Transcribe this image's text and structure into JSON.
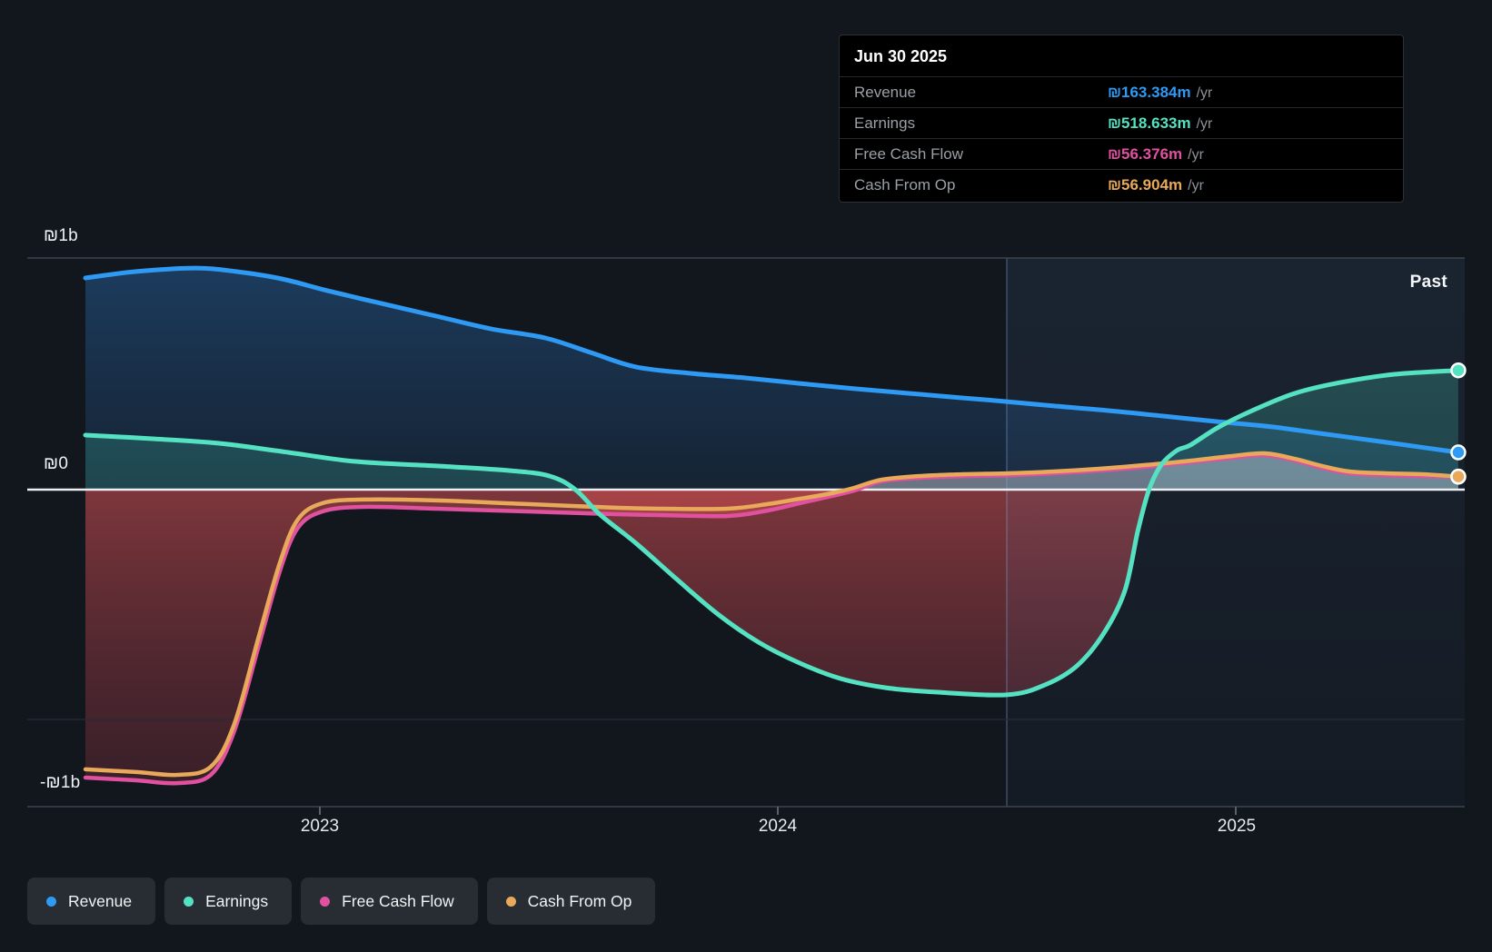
{
  "past_label": "Past",
  "tooltip": {
    "date": "Jun 30 2025",
    "rows": [
      {
        "label": "Revenue",
        "value": "₪163.384m",
        "unit": "/yr",
        "color": "#2e9af3"
      },
      {
        "label": "Earnings",
        "value": "₪518.633m",
        "unit": "/yr",
        "color": "#55e2c2"
      },
      {
        "label": "Free Cash Flow",
        "value": "₪56.376m",
        "unit": "/yr",
        "color": "#e0519f"
      },
      {
        "label": "Cash From Op",
        "value": "₪56.904m",
        "unit": "/yr",
        "color": "#e9a95b"
      }
    ]
  },
  "axes": {
    "y_labels": [
      "₪1b",
      "₪0",
      "-₪1b"
    ],
    "x_labels": [
      "2023",
      "2024",
      "2025"
    ]
  },
  "legend": [
    {
      "label": "Revenue",
      "color": "#2e9af3"
    },
    {
      "label": "Earnings",
      "color": "#55e2c2"
    },
    {
      "label": "Free Cash Flow",
      "color": "#e0519f"
    },
    {
      "label": "Cash From Op",
      "color": "#e9a95b"
    }
  ],
  "chart_data": {
    "type": "area",
    "title": "",
    "xlabel": "",
    "ylabel": "₪ (billions)",
    "x_ticks": [
      2023,
      2024,
      2025
    ],
    "y_ticks_b": [
      1,
      0,
      -1
    ],
    "ylim_b": [
      -1.38,
      1.0
    ],
    "x_range_t": [
      2022.488,
      2025.486
    ],
    "divider_t": 2024.5,
    "grid": true,
    "legend_position": "bottom",
    "hover_point_date": "Jun 30 2025",
    "series": [
      {
        "name": "Revenue",
        "color": "#2e9af3",
        "end_value_m": 163.384,
        "points": [
          [
            2022.488,
            0.921
          ],
          [
            2022.599,
            0.949
          ],
          [
            2022.728,
            0.964
          ],
          [
            2022.817,
            0.949
          ],
          [
            2022.917,
            0.917
          ],
          [
            2023.016,
            0.866
          ],
          [
            2023.135,
            0.81
          ],
          [
            2023.254,
            0.755
          ],
          [
            2023.373,
            0.7
          ],
          [
            2023.492,
            0.66
          ],
          [
            2023.591,
            0.597
          ],
          [
            2023.69,
            0.534
          ],
          [
            2023.81,
            0.506
          ],
          [
            2023.929,
            0.486
          ],
          [
            2024.048,
            0.462
          ],
          [
            2024.167,
            0.439
          ],
          [
            2024.286,
            0.419
          ],
          [
            2024.405,
            0.399
          ],
          [
            2024.5,
            0.383
          ],
          [
            2024.603,
            0.364
          ],
          [
            2024.722,
            0.344
          ],
          [
            2024.841,
            0.32
          ],
          [
            2024.96,
            0.296
          ],
          [
            2025.079,
            0.273
          ],
          [
            2025.198,
            0.241
          ],
          [
            2025.317,
            0.209
          ],
          [
            2025.486,
            0.162
          ]
        ]
      },
      {
        "name": "Earnings",
        "color": "#55e2c2",
        "end_value_m": 518.633,
        "points": [
          [
            2022.488,
            0.237
          ],
          [
            2022.639,
            0.221
          ],
          [
            2022.778,
            0.202
          ],
          [
            2022.917,
            0.166
          ],
          [
            2023.075,
            0.123
          ],
          [
            2023.254,
            0.103
          ],
          [
            2023.413,
            0.083
          ],
          [
            2023.502,
            0.059
          ],
          [
            2023.558,
            0.0
          ],
          [
            2023.611,
            -0.107
          ],
          [
            2023.69,
            -0.233
          ],
          [
            2023.78,
            -0.391
          ],
          [
            2023.869,
            -0.542
          ],
          [
            2023.958,
            -0.664
          ],
          [
            2024.048,
            -0.755
          ],
          [
            2024.137,
            -0.822
          ],
          [
            2024.236,
            -0.862
          ],
          [
            2024.345,
            -0.881
          ],
          [
            2024.5,
            -0.893
          ],
          [
            2024.583,
            -0.85
          ],
          [
            2024.653,
            -0.767
          ],
          [
            2024.712,
            -0.625
          ],
          [
            2024.758,
            -0.439
          ],
          [
            2024.786,
            -0.182
          ],
          [
            2024.81,
            -0.004
          ],
          [
            2024.837,
            0.107
          ],
          [
            2024.871,
            0.17
          ],
          [
            2024.901,
            0.194
          ],
          [
            2024.96,
            0.269
          ],
          [
            2025.036,
            0.344
          ],
          [
            2025.129,
            0.419
          ],
          [
            2025.228,
            0.466
          ],
          [
            2025.347,
            0.502
          ],
          [
            2025.486,
            0.519
          ]
        ]
      },
      {
        "name": "Free Cash Flow",
        "color": "#e0519f",
        "end_value_m": 56.376,
        "points": [
          [
            2022.488,
            -1.253
          ],
          [
            2022.599,
            -1.265
          ],
          [
            2022.688,
            -1.277
          ],
          [
            2022.762,
            -1.241
          ],
          [
            2022.813,
            -1.051
          ],
          [
            2022.867,
            -0.676
          ],
          [
            2022.913,
            -0.352
          ],
          [
            2022.952,
            -0.166
          ],
          [
            2023.006,
            -0.095
          ],
          [
            2023.095,
            -0.075
          ],
          [
            2023.254,
            -0.083
          ],
          [
            2023.452,
            -0.095
          ],
          [
            2023.651,
            -0.107
          ],
          [
            2023.75,
            -0.111
          ],
          [
            2023.889,
            -0.115
          ],
          [
            2023.978,
            -0.091
          ],
          [
            2024.048,
            -0.059
          ],
          [
            2024.117,
            -0.028
          ],
          [
            2024.167,
            -0.004
          ],
          [
            2024.226,
            0.036
          ],
          [
            2024.306,
            0.051
          ],
          [
            2024.405,
            0.059
          ],
          [
            2024.504,
            0.063
          ],
          [
            2024.603,
            0.071
          ],
          [
            2024.702,
            0.083
          ],
          [
            2024.802,
            0.099
          ],
          [
            2024.901,
            0.119
          ],
          [
            2024.99,
            0.138
          ],
          [
            2025.063,
            0.15
          ],
          [
            2025.129,
            0.126
          ],
          [
            2025.188,
            0.095
          ],
          [
            2025.248,
            0.071
          ],
          [
            2025.327,
            0.063
          ],
          [
            2025.407,
            0.059
          ],
          [
            2025.486,
            0.056
          ]
        ]
      },
      {
        "name": "Cash From Op",
        "color": "#e9a95b",
        "end_value_m": 56.904,
        "points": [
          [
            2022.488,
            -1.217
          ],
          [
            2022.599,
            -1.229
          ],
          [
            2022.688,
            -1.241
          ],
          [
            2022.762,
            -1.206
          ],
          [
            2022.813,
            -1.02
          ],
          [
            2022.867,
            -0.636
          ],
          [
            2022.913,
            -0.316
          ],
          [
            2022.952,
            -0.13
          ],
          [
            2023.006,
            -0.059
          ],
          [
            2023.095,
            -0.043
          ],
          [
            2023.254,
            -0.047
          ],
          [
            2023.452,
            -0.063
          ],
          [
            2023.651,
            -0.079
          ],
          [
            2023.75,
            -0.083
          ],
          [
            2023.889,
            -0.083
          ],
          [
            2023.978,
            -0.063
          ],
          [
            2024.048,
            -0.04
          ],
          [
            2024.117,
            -0.016
          ],
          [
            2024.167,
            0.008
          ],
          [
            2024.226,
            0.043
          ],
          [
            2024.306,
            0.059
          ],
          [
            2024.405,
            0.067
          ],
          [
            2024.504,
            0.071
          ],
          [
            2024.603,
            0.079
          ],
          [
            2024.702,
            0.091
          ],
          [
            2024.802,
            0.107
          ],
          [
            2024.901,
            0.126
          ],
          [
            2024.99,
            0.146
          ],
          [
            2025.063,
            0.158
          ],
          [
            2025.129,
            0.134
          ],
          [
            2025.188,
            0.103
          ],
          [
            2025.248,
            0.079
          ],
          [
            2025.327,
            0.071
          ],
          [
            2025.407,
            0.067
          ],
          [
            2025.486,
            0.057
          ]
        ]
      }
    ]
  }
}
